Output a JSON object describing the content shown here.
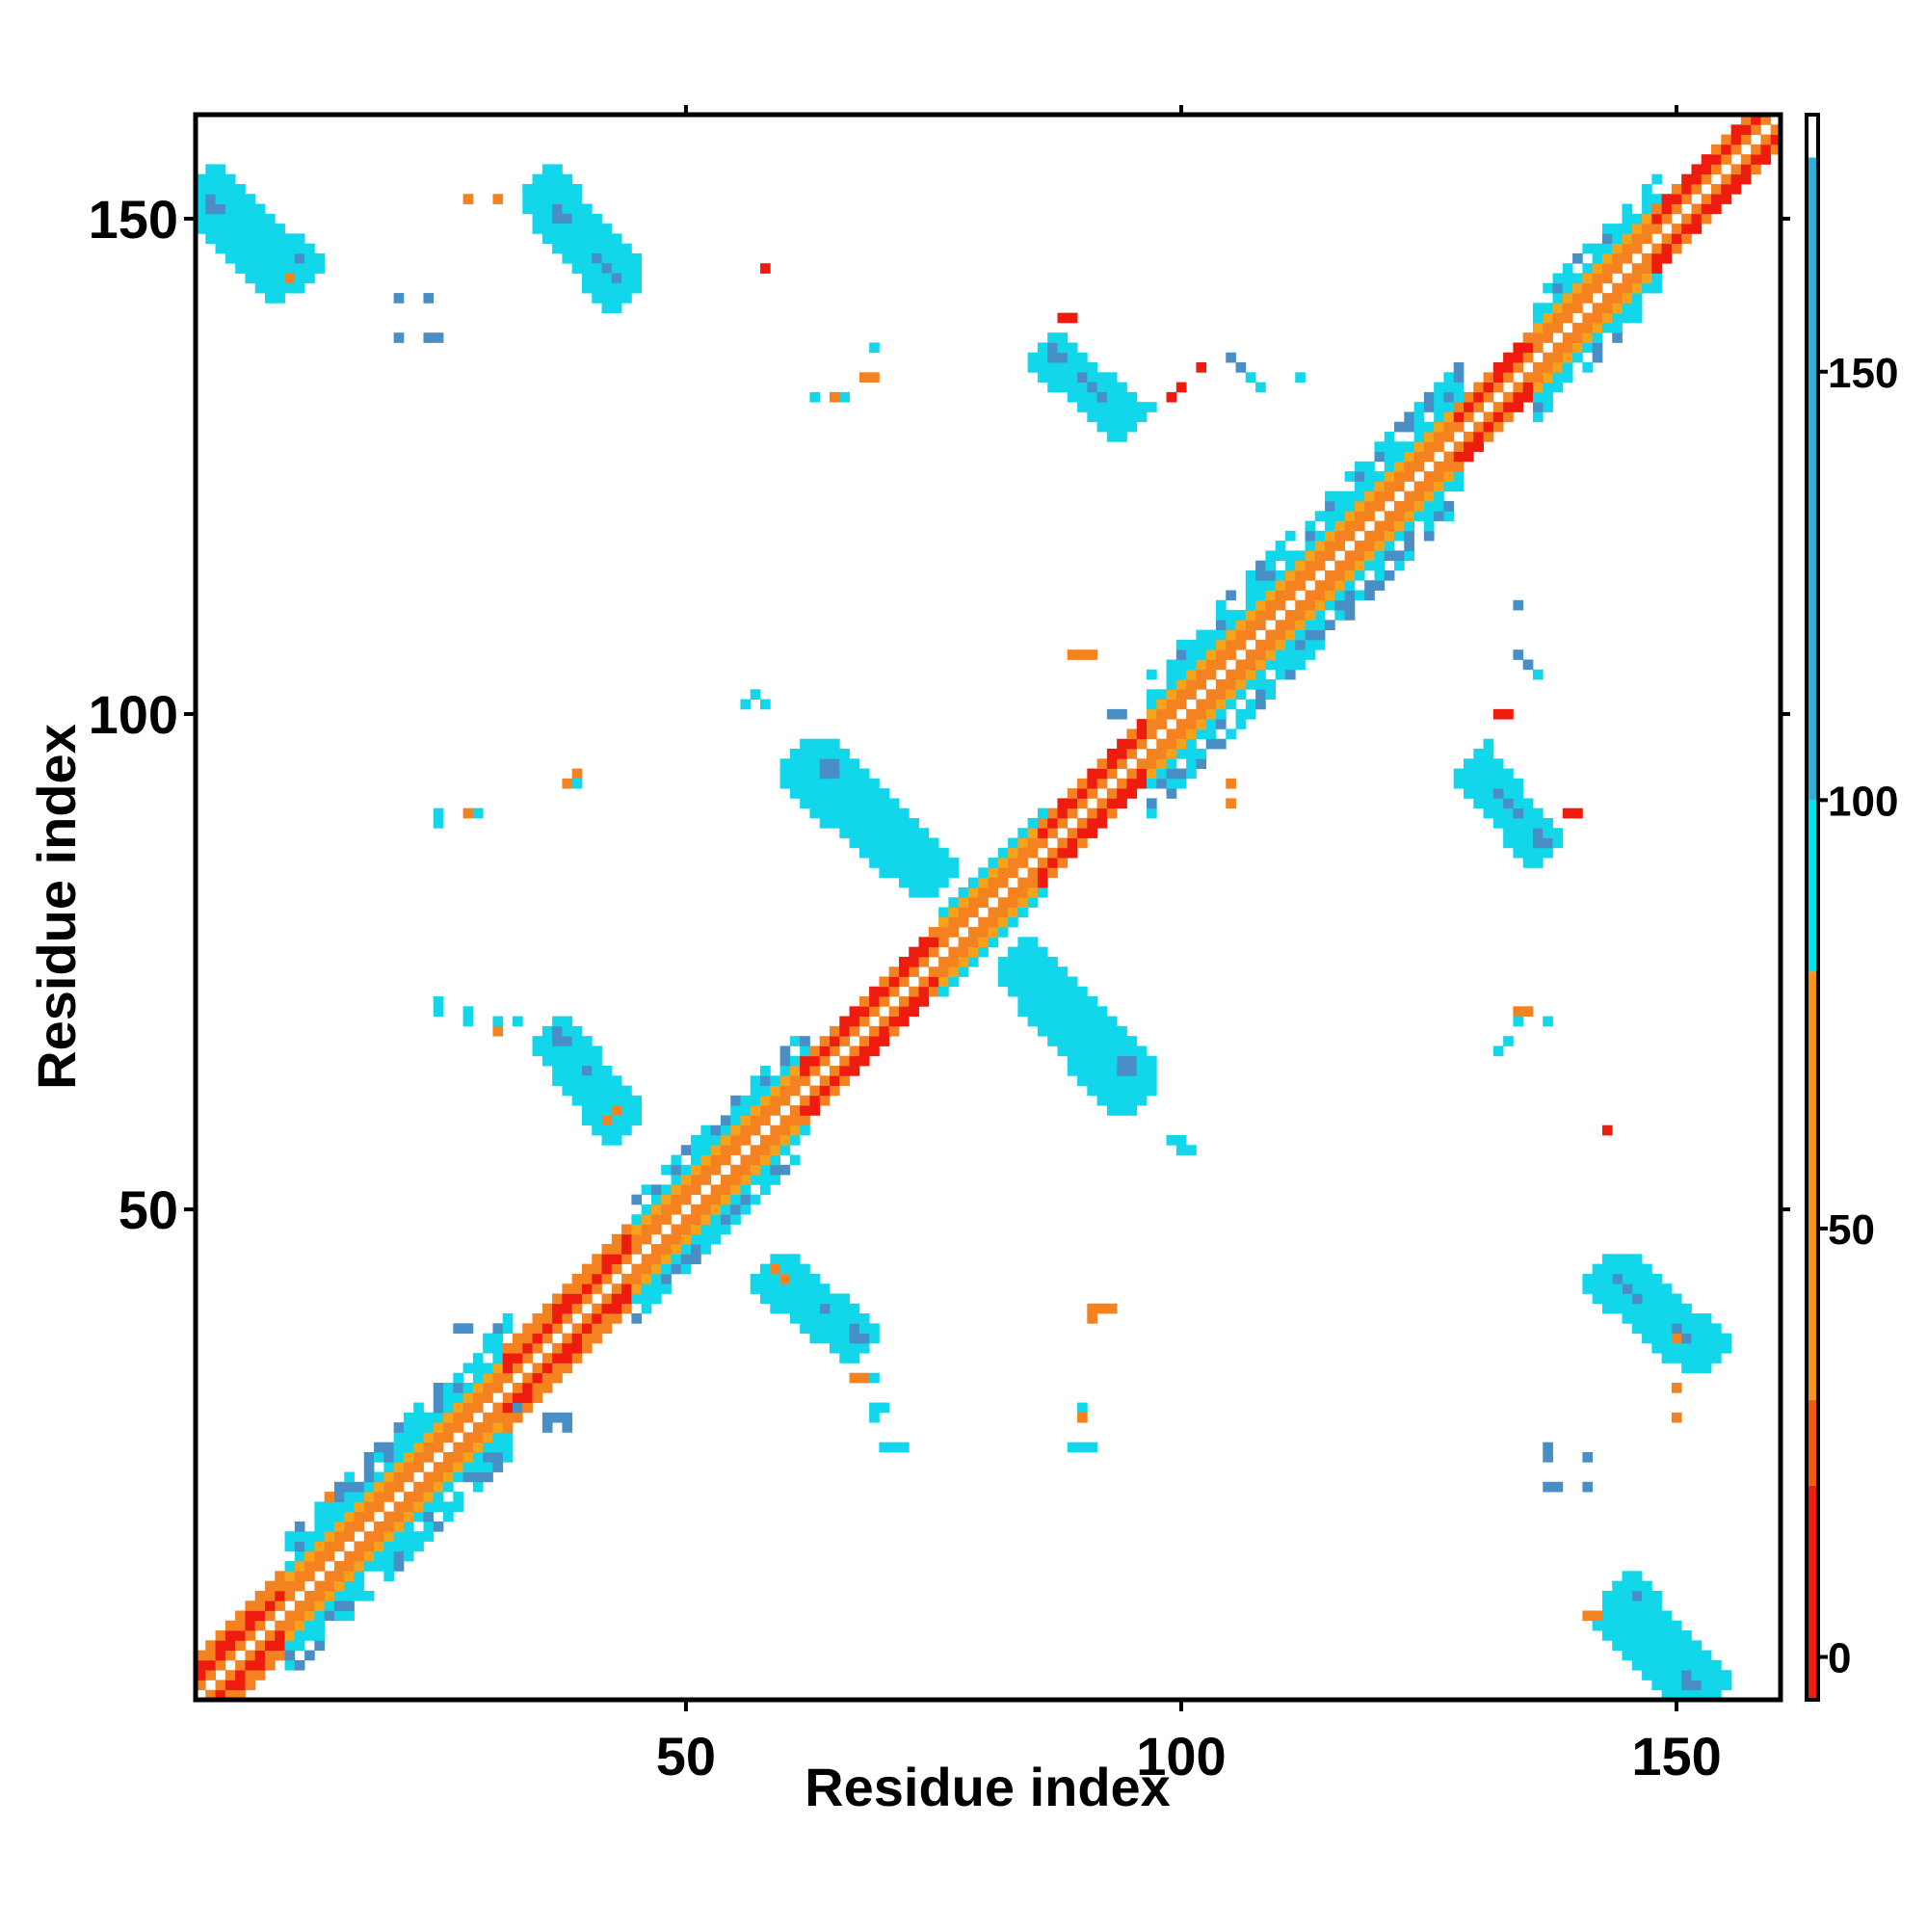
{
  "chart_data": {
    "type": "heatmap",
    "title": "",
    "xlabel": "Residue index",
    "ylabel": "Residue index",
    "xlim": [
      1,
      160
    ],
    "ylim": [
      1,
      160
    ],
    "x_ticks": [
      50,
      100,
      150
    ],
    "y_ticks": [
      50,
      100,
      150
    ],
    "grid": false,
    "colorbar": {
      "placement": "right",
      "range": [
        -5,
        180
      ],
      "ticks": [
        0,
        50,
        100,
        150
      ],
      "bands": [
        {
          "from": -5,
          "to": 20,
          "color": "#ee1c0e"
        },
        {
          "from": 20,
          "to": 30,
          "color": "#f25c0e"
        },
        {
          "from": 30,
          "to": 80,
          "color": "#f7941d"
        },
        {
          "from": 80,
          "to": 100,
          "color": "#00e5ee"
        },
        {
          "from": 100,
          "to": 175,
          "color": "#2fb0d8"
        },
        {
          "from": 175,
          "to": 180,
          "color": "#ffffff"
        }
      ]
    },
    "palette": {
      "cat_red": "#ee1c0e",
      "cat_orange": "#f58220",
      "cat_lightorange": "#f7a21b",
      "cat_cyan": "#12d6ea",
      "cat_steel": "#4a8ec6"
    },
    "note_symmetric": true,
    "diagonal_band": [
      {
        "from": 1,
        "to": 10,
        "halfwidth": 4,
        "main": "red"
      },
      {
        "from": 10,
        "to": 32,
        "halfwidth": 7,
        "main": "cyan"
      },
      {
        "from": 32,
        "to": 45,
        "halfwidth": 4,
        "main": "red"
      },
      {
        "from": 45,
        "to": 62,
        "halfwidth": 6,
        "main": "cyan"
      },
      {
        "from": 62,
        "to": 76,
        "halfwidth": 3,
        "main": "red"
      },
      {
        "from": 76,
        "to": 86,
        "halfwidth": 4,
        "main": "cyan"
      },
      {
        "from": 86,
        "to": 97,
        "halfwidth": 3,
        "main": "red"
      },
      {
        "from": 97,
        "to": 128,
        "halfwidth": 7,
        "main": "cyan"
      },
      {
        "from": 128,
        "to": 136,
        "halfwidth": 3,
        "main": "red"
      },
      {
        "from": 136,
        "to": 148,
        "halfwidth": 6,
        "main": "cyan"
      },
      {
        "from": 148,
        "to": 160,
        "halfwidth": 3,
        "main": "red"
      }
    ],
    "offdiag_strips": [
      {
        "x0": 2,
        "y0": 152,
        "x1": 10,
        "y1": 145,
        "w": 2.5
      },
      {
        "x0": 36,
        "y0": 152,
        "x1": 42,
        "y1": 145,
        "w": 2.5
      },
      {
        "x0": 62,
        "y0": 94,
        "x1": 74,
        "y1": 84,
        "w": 2.5
      },
      {
        "x0": 84,
        "y0": 74,
        "x1": 94,
        "y1": 64,
        "w": 2.5
      },
      {
        "x0": 37,
        "y0": 67,
        "x1": 43,
        "y1": 60,
        "w": 2.2
      },
      {
        "x0": 59,
        "y0": 43,
        "x1": 67,
        "y1": 37,
        "w": 2.2
      },
      {
        "x0": 87,
        "y0": 136,
        "x1": 94,
        "y1": 130,
        "w": 2.2
      },
      {
        "x0": 130,
        "y0": 94,
        "x1": 136,
        "y1": 87,
        "w": 2.2
      },
      {
        "x0": 143,
        "y0": 43,
        "x1": 150,
        "y1": 37,
        "w": 2.2
      },
      {
        "x0": 144,
        "y0": 9,
        "x1": 151,
        "y1": 2,
        "w": 2.2
      }
    ],
    "scatter_cells": [
      {
        "x": 10,
        "y": 144,
        "cat": "orange"
      },
      {
        "x": 28,
        "y": 152,
        "cat": "orange"
      },
      {
        "x": 31,
        "y": 152,
        "cat": "orange"
      },
      {
        "x": 58,
        "y": 145,
        "cat": "red"
      },
      {
        "x": 21,
        "y": 142,
        "cat": "steel"
      },
      {
        "x": 24,
        "y": 142,
        "cat": "steel"
      },
      {
        "x": 21,
        "y": 138,
        "cat": "steel"
      },
      {
        "x": 24,
        "y": 138,
        "cat": "steel"
      },
      {
        "x": 25,
        "y": 138,
        "cat": "steel"
      },
      {
        "x": 68,
        "y": 134,
        "cat": "orange"
      },
      {
        "x": 69,
        "y": 134,
        "cat": "orange"
      },
      {
        "x": 63,
        "y": 132,
        "cat": "cyan"
      },
      {
        "x": 65,
        "y": 132,
        "cat": "orange"
      },
      {
        "x": 66,
        "y": 132,
        "cat": "cyan"
      },
      {
        "x": 69,
        "y": 137,
        "cat": "cyan"
      },
      {
        "x": 88,
        "y": 140,
        "cat": "red"
      },
      {
        "x": 89,
        "y": 140,
        "cat": "red"
      },
      {
        "x": 96,
        "y": 131,
        "cat": "cyan"
      },
      {
        "x": 97,
        "y": 131,
        "cat": "cyan"
      },
      {
        "x": 100,
        "y": 133,
        "cat": "red"
      },
      {
        "x": 99,
        "y": 132,
        "cat": "red"
      },
      {
        "x": 102,
        "y": 135,
        "cat": "red"
      },
      {
        "x": 105,
        "y": 136,
        "cat": "steel"
      },
      {
        "x": 106,
        "y": 135,
        "cat": "steel"
      },
      {
        "x": 107,
        "y": 134,
        "cat": "cyan"
      },
      {
        "x": 108,
        "y": 133,
        "cat": "cyan"
      },
      {
        "x": 112,
        "y": 134,
        "cat": "cyan"
      },
      {
        "x": 89,
        "y": 106,
        "cat": "orange"
      },
      {
        "x": 90,
        "y": 106,
        "cat": "orange"
      },
      {
        "x": 91,
        "y": 106,
        "cat": "orange"
      },
      {
        "x": 57,
        "y": 102,
        "cat": "cyan"
      },
      {
        "x": 58,
        "y": 101,
        "cat": "cyan"
      },
      {
        "x": 56,
        "y": 101,
        "cat": "cyan"
      },
      {
        "x": 93,
        "y": 100,
        "cat": "steel"
      },
      {
        "x": 94,
        "y": 100,
        "cat": "steel"
      },
      {
        "x": 100,
        "y": 94,
        "cat": "steel"
      },
      {
        "x": 105,
        "y": 93,
        "cat": "orange"
      },
      {
        "x": 105,
        "y": 91,
        "cat": "orange"
      },
      {
        "x": 39,
        "y": 94,
        "cat": "orange"
      },
      {
        "x": 38,
        "y": 93,
        "cat": "orange"
      },
      {
        "x": 39,
        "y": 93,
        "cat": "cyan"
      },
      {
        "x": 25,
        "y": 90,
        "cat": "cyan"
      },
      {
        "x": 25,
        "y": 89,
        "cat": "cyan"
      },
      {
        "x": 28,
        "y": 90,
        "cat": "orange"
      },
      {
        "x": 29,
        "y": 90,
        "cat": "cyan"
      },
      {
        "x": 134,
        "y": 111,
        "cat": "steel"
      },
      {
        "x": 134,
        "y": 106,
        "cat": "steel"
      },
      {
        "x": 135,
        "y": 105,
        "cat": "steel"
      },
      {
        "x": 136,
        "y": 104,
        "cat": "cyan"
      },
      {
        "x": 133,
        "y": 100,
        "cat": "red"
      },
      {
        "x": 132,
        "y": 100,
        "cat": "red"
      },
      {
        "x": 131,
        "y": 97,
        "cat": "cyan"
      },
      {
        "x": 139,
        "y": 90,
        "cat": "red"
      },
      {
        "x": 140,
        "y": 90,
        "cat": "red"
      },
      {
        "x": 25,
        "y": 71,
        "cat": "cyan"
      },
      {
        "x": 25,
        "y": 70,
        "cat": "cyan"
      },
      {
        "x": 28,
        "y": 70,
        "cat": "cyan"
      },
      {
        "x": 28,
        "y": 69,
        "cat": "cyan"
      },
      {
        "x": 31,
        "y": 69,
        "cat": "cyan"
      },
      {
        "x": 31,
        "y": 68,
        "cat": "orange"
      },
      {
        "x": 33,
        "y": 69,
        "cat": "cyan"
      },
      {
        "x": 43,
        "y": 60,
        "cat": "orange"
      },
      {
        "x": 42,
        "y": 59,
        "cat": "orange"
      },
      {
        "x": 41,
        "y": 59,
        "cat": "cyan"
      },
      {
        "x": 134,
        "y": 70,
        "cat": "orange"
      },
      {
        "x": 135,
        "y": 70,
        "cat": "orange"
      },
      {
        "x": 134,
        "y": 69,
        "cat": "cyan"
      },
      {
        "x": 137,
        "y": 69,
        "cat": "cyan"
      },
      {
        "x": 133,
        "y": 67,
        "cat": "cyan"
      },
      {
        "x": 132,
        "y": 66,
        "cat": "cyan"
      },
      {
        "x": 143,
        "y": 58,
        "cat": "red"
      },
      {
        "x": 99,
        "y": 57,
        "cat": "cyan"
      },
      {
        "x": 100,
        "y": 57,
        "cat": "cyan"
      },
      {
        "x": 101,
        "y": 56,
        "cat": "cyan"
      },
      {
        "x": 100,
        "y": 56,
        "cat": "cyan"
      },
      {
        "x": 59,
        "y": 44,
        "cat": "orange"
      },
      {
        "x": 60,
        "y": 43,
        "cat": "orange"
      },
      {
        "x": 91,
        "y": 40,
        "cat": "orange"
      },
      {
        "x": 92,
        "y": 40,
        "cat": "orange"
      },
      {
        "x": 93,
        "y": 40,
        "cat": "orange"
      },
      {
        "x": 91,
        "y": 39,
        "cat": "orange"
      },
      {
        "x": 67,
        "y": 33,
        "cat": "orange"
      },
      {
        "x": 68,
        "y": 33,
        "cat": "orange"
      },
      {
        "x": 69,
        "y": 33,
        "cat": "cyan"
      },
      {
        "x": 69,
        "y": 30,
        "cat": "cyan"
      },
      {
        "x": 70,
        "y": 30,
        "cat": "cyan"
      },
      {
        "x": 69,
        "y": 29,
        "cat": "cyan"
      },
      {
        "x": 70,
        "y": 26,
        "cat": "cyan"
      },
      {
        "x": 71,
        "y": 26,
        "cat": "cyan"
      },
      {
        "x": 72,
        "y": 26,
        "cat": "cyan"
      },
      {
        "x": 90,
        "y": 30,
        "cat": "cyan"
      },
      {
        "x": 89,
        "y": 26,
        "cat": "cyan"
      },
      {
        "x": 90,
        "y": 26,
        "cat": "cyan"
      },
      {
        "x": 91,
        "y": 26,
        "cat": "cyan"
      },
      {
        "x": 90,
        "y": 29,
        "cat": "orange"
      },
      {
        "x": 150,
        "y": 32,
        "cat": "orange"
      },
      {
        "x": 150,
        "y": 29,
        "cat": "orange"
      },
      {
        "x": 150,
        "y": 37,
        "cat": "orange"
      },
      {
        "x": 137,
        "y": 26,
        "cat": "steel"
      },
      {
        "x": 137,
        "y": 25,
        "cat": "steel"
      },
      {
        "x": 141,
        "y": 25,
        "cat": "steel"
      },
      {
        "x": 137,
        "y": 22,
        "cat": "steel"
      },
      {
        "x": 138,
        "y": 22,
        "cat": "steel"
      },
      {
        "x": 141,
        "y": 22,
        "cat": "steel"
      },
      {
        "x": 141,
        "y": 9,
        "cat": "orange"
      },
      {
        "x": 142,
        "y": 9,
        "cat": "orange"
      },
      {
        "x": 143,
        "y": 9,
        "cat": "cyan"
      },
      {
        "x": 33,
        "y": 30,
        "cat": "steel"
      },
      {
        "x": 36,
        "y": 29,
        "cat": "steel"
      },
      {
        "x": 37,
        "y": 29,
        "cat": "steel"
      },
      {
        "x": 38,
        "y": 29,
        "cat": "steel"
      },
      {
        "x": 36,
        "y": 28,
        "cat": "steel"
      },
      {
        "x": 38,
        "y": 28,
        "cat": "steel"
      },
      {
        "x": 27,
        "y": 38,
        "cat": "steel"
      },
      {
        "x": 28,
        "y": 38,
        "cat": "steel"
      },
      {
        "x": 19,
        "y": 14,
        "cat": "cyan"
      },
      {
        "x": 20,
        "y": 14,
        "cat": "cyan"
      },
      {
        "x": 14,
        "y": 21,
        "cat": "orange"
      }
    ]
  }
}
